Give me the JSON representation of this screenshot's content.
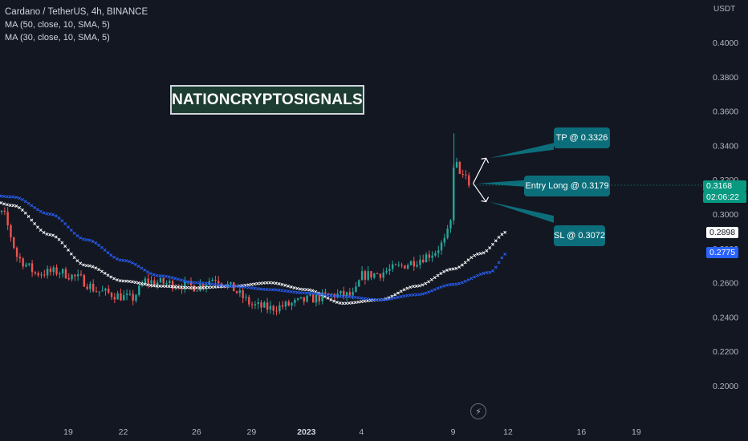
{
  "legend": {
    "title": "Cardano / TetherUS, 4h, BINANCE",
    "ma1": "MA (50, close, 10, SMA, 5)",
    "ma2": "MA (30, close, 10, SMA, 5)"
  },
  "axis_currency": "USDT",
  "brand_text": "NATIONCRYPTOSIGNALS",
  "callouts": {
    "tp": "TP @ 0.3326",
    "entry": "Entry Long @ 0.3179",
    "sl": "SL @ 0.3072"
  },
  "price_tags": {
    "last_price": "0.3168",
    "countdown": "02:06:22",
    "ma1_value": "0.2898",
    "ma2_value": "0.2775"
  },
  "colors": {
    "background": "#131722",
    "up_candle": "#26a69a",
    "down_candle": "#ef5350",
    "ma_white": "#ffffff",
    "ma_blue": "#2962ff",
    "callout": "#0c6e7a",
    "last_price_tag": "#089981"
  },
  "icon": "lightning-icon",
  "chart_data": {
    "type": "candlestick",
    "title": "Cardano / TetherUS, 4h, BINANCE",
    "ylabel": "USDT",
    "ylim": [
      0.19,
      0.41
    ],
    "yticks": [
      0.2,
      0.22,
      0.24,
      0.26,
      0.28,
      0.3,
      0.32,
      0.34,
      0.36,
      0.38,
      0.4
    ],
    "ytick_labels": [
      "0.2000",
      "0.2200",
      "0.2400",
      "0.2600",
      "0.2800",
      "0.3000",
      "0.3200",
      "0.3400",
      "0.3600",
      "0.3800",
      "0.4000"
    ],
    "x_ticks": [
      {
        "label": "19",
        "day": 19
      },
      {
        "label": "22",
        "day": 22
      },
      {
        "label": "26",
        "day": 26
      },
      {
        "label": "29",
        "day": 29
      },
      {
        "label": "2023",
        "day": 32
      },
      {
        "label": "4",
        "day": 35
      },
      {
        "label": "9",
        "day": 40
      },
      {
        "label": "12",
        "day": 43
      },
      {
        "label": "16",
        "day": 47
      },
      {
        "label": "19",
        "day": 50
      }
    ],
    "candle_anchors": [
      {
        "day": 14.2,
        "close": 0.301
      },
      {
        "day": 15.5,
        "close": 0.3
      },
      {
        "day": 16.2,
        "close": 0.2755
      },
      {
        "day": 17.2,
        "close": 0.2655
      },
      {
        "day": 18.5,
        "close": 0.2665
      },
      {
        "day": 19.7,
        "close": 0.262
      },
      {
        "day": 20.5,
        "close": 0.2555
      },
      {
        "day": 21.5,
        "close": 0.253
      },
      {
        "day": 22.5,
        "close": 0.2505
      },
      {
        "day": 23.2,
        "close": 0.261
      },
      {
        "day": 24.5,
        "close": 0.2595
      },
      {
        "day": 26.0,
        "close": 0.2575
      },
      {
        "day": 27.0,
        "close": 0.263
      },
      {
        "day": 28.0,
        "close": 0.2565
      },
      {
        "day": 29.0,
        "close": 0.247
      },
      {
        "day": 30.0,
        "close": 0.245
      },
      {
        "day": 31.0,
        "close": 0.247
      },
      {
        "day": 32.0,
        "close": 0.25
      },
      {
        "day": 33.5,
        "close": 0.253
      },
      {
        "day": 34.6,
        "close": 0.2525
      },
      {
        "day": 35.0,
        "close": 0.264
      },
      {
        "day": 36.0,
        "close": 0.2655
      },
      {
        "day": 37.0,
        "close": 0.269
      },
      {
        "day": 38.0,
        "close": 0.273
      },
      {
        "day": 39.0,
        "close": 0.278
      },
      {
        "day": 39.6,
        "close": 0.285
      },
      {
        "day": 40.0,
        "close": 0.3
      },
      {
        "day": 40.1,
        "close": 0.329
      },
      {
        "day": 40.5,
        "close": 0.323
      },
      {
        "day": 41.0,
        "close": 0.3168
      }
    ],
    "series": [
      {
        "name": "MA (50, close, 10, SMA, 5)",
        "color": "white",
        "points": [
          {
            "day": 14.0,
            "value": 0.311
          },
          {
            "day": 16.0,
            "value": 0.305
          },
          {
            "day": 18.0,
            "value": 0.288
          },
          {
            "day": 20.0,
            "value": 0.27
          },
          {
            "day": 22.0,
            "value": 0.261
          },
          {
            "day": 24.0,
            "value": 0.258
          },
          {
            "day": 26.0,
            "value": 0.257
          },
          {
            "day": 28.0,
            "value": 0.258
          },
          {
            "day": 30.0,
            "value": 0.26
          },
          {
            "day": 32.0,
            "value": 0.256
          },
          {
            "day": 34.0,
            "value": 0.248
          },
          {
            "day": 36.0,
            "value": 0.25
          },
          {
            "day": 38.0,
            "value": 0.258
          },
          {
            "day": 40.0,
            "value": 0.268
          },
          {
            "day": 41.5,
            "value": 0.277
          },
          {
            "day": 43.0,
            "value": 0.2898
          }
        ]
      },
      {
        "name": "MA (30, close, 10, SMA, 5)",
        "color": "blue",
        "points": [
          {
            "day": 14.0,
            "value": 0.312
          },
          {
            "day": 16.0,
            "value": 0.31
          },
          {
            "day": 18.0,
            "value": 0.3
          },
          {
            "day": 20.0,
            "value": 0.285
          },
          {
            "day": 22.0,
            "value": 0.273
          },
          {
            "day": 24.0,
            "value": 0.264
          },
          {
            "day": 26.0,
            "value": 0.26
          },
          {
            "day": 28.0,
            "value": 0.258
          },
          {
            "day": 30.0,
            "value": 0.256
          },
          {
            "day": 32.0,
            "value": 0.254
          },
          {
            "day": 34.0,
            "value": 0.252
          },
          {
            "day": 36.0,
            "value": 0.25
          },
          {
            "day": 38.0,
            "value": 0.253
          },
          {
            "day": 40.0,
            "value": 0.259
          },
          {
            "day": 42.0,
            "value": 0.266
          },
          {
            "day": 43.0,
            "value": 0.2775
          }
        ]
      }
    ],
    "trade_levels": [
      {
        "label": "TP @ 0.3326",
        "value": 0.3326
      },
      {
        "label": "Entry Long @ 0.3179",
        "value": 0.3179
      },
      {
        "label": "SL @ 0.3072",
        "value": 0.3072
      }
    ],
    "last_price": 0.3168,
    "legend_position": "top-left",
    "grid": false
  }
}
